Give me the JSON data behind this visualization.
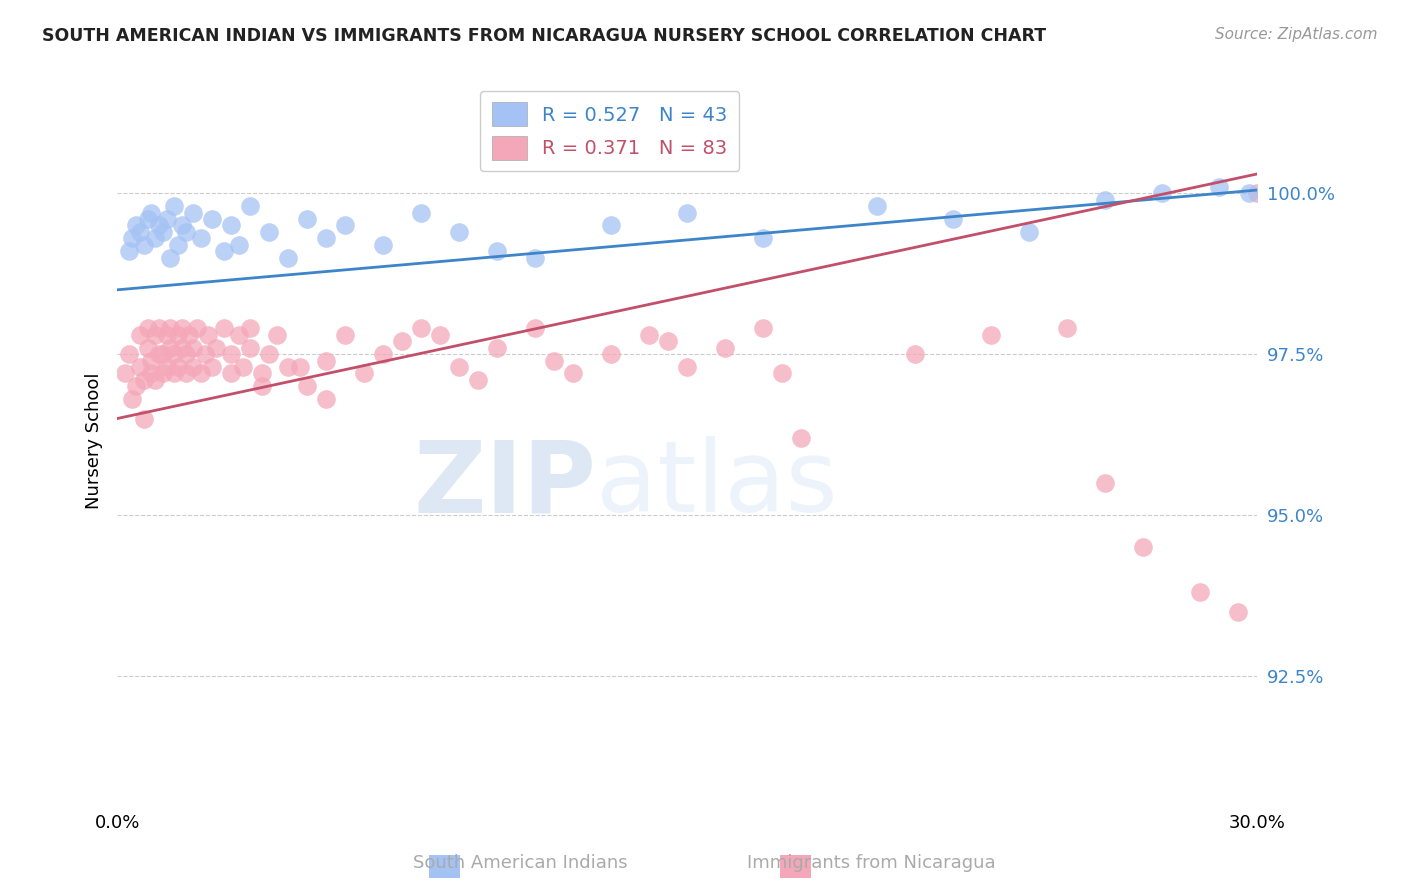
{
  "title": "SOUTH AMERICAN INDIAN VS IMMIGRANTS FROM NICARAGUA NURSERY SCHOOL CORRELATION CHART",
  "source": "Source: ZipAtlas.com",
  "ylabel": "Nursery School",
  "ytick_values": [
    92.5,
    95.0,
    97.5,
    100.0
  ],
  "xrange": [
    0.0,
    30.0
  ],
  "yrange": [
    90.5,
    101.8
  ],
  "blue_color": "#a4c2f4",
  "pink_color": "#f4a7b9",
  "blue_line_color": "#3d85c8",
  "pink_line_color": "#c2506a",
  "watermark_zip": "ZIP",
  "watermark_atlas": "atlas",
  "blue_line_x0": 0.0,
  "blue_line_y0": 98.5,
  "blue_line_x1": 30.0,
  "blue_line_y1": 100.05,
  "pink_line_x0": 0.0,
  "pink_line_y0": 96.5,
  "pink_line_x1": 30.0,
  "pink_line_y1": 100.3,
  "blue_scatter_x": [
    0.3,
    0.4,
    0.5,
    0.6,
    0.7,
    0.8,
    0.9,
    1.0,
    1.1,
    1.2,
    1.3,
    1.4,
    1.5,
    1.6,
    1.7,
    1.8,
    2.0,
    2.2,
    2.5,
    2.8,
    3.0,
    3.2,
    3.5,
    4.0,
    4.5,
    5.0,
    5.5,
    6.0,
    7.0,
    8.0,
    9.0,
    10.0,
    11.0,
    13.0,
    15.0,
    17.0,
    20.0,
    22.0,
    24.0,
    26.0,
    27.5,
    29.0,
    29.8
  ],
  "blue_scatter_y": [
    99.1,
    99.3,
    99.5,
    99.4,
    99.2,
    99.6,
    99.7,
    99.3,
    99.5,
    99.4,
    99.6,
    99.0,
    99.8,
    99.2,
    99.5,
    99.4,
    99.7,
    99.3,
    99.6,
    99.1,
    99.5,
    99.2,
    99.8,
    99.4,
    99.0,
    99.6,
    99.3,
    99.5,
    99.2,
    99.7,
    99.4,
    99.1,
    99.0,
    99.5,
    99.7,
    99.3,
    99.8,
    99.6,
    99.4,
    99.9,
    100.0,
    100.1,
    100.0
  ],
  "pink_scatter_x": [
    0.2,
    0.3,
    0.4,
    0.5,
    0.6,
    0.6,
    0.7,
    0.7,
    0.8,
    0.8,
    0.9,
    0.9,
    1.0,
    1.0,
    1.1,
    1.1,
    1.2,
    1.2,
    1.3,
    1.3,
    1.4,
    1.4,
    1.5,
    1.5,
    1.6,
    1.6,
    1.7,
    1.7,
    1.8,
    1.8,
    1.9,
    2.0,
    2.0,
    2.1,
    2.2,
    2.3,
    2.4,
    2.5,
    2.6,
    2.8,
    3.0,
    3.0,
    3.2,
    3.3,
    3.5,
    3.5,
    3.8,
    4.0,
    4.2,
    4.5,
    5.0,
    5.5,
    6.0,
    6.5,
    7.0,
    8.0,
    9.0,
    10.0,
    11.0,
    12.0,
    13.0,
    14.0,
    15.0,
    16.0,
    17.0,
    17.5,
    18.0,
    21.0,
    23.0,
    25.0,
    26.0,
    27.0,
    28.5,
    29.5,
    30.0,
    7.5,
    8.5,
    3.8,
    4.8,
    5.5,
    9.5,
    11.5,
    14.5
  ],
  "pink_scatter_y": [
    97.2,
    97.5,
    96.8,
    97.0,
    97.3,
    97.8,
    96.5,
    97.1,
    97.6,
    97.9,
    97.2,
    97.4,
    97.8,
    97.1,
    97.5,
    97.9,
    97.2,
    97.5,
    97.8,
    97.3,
    97.6,
    97.9,
    97.2,
    97.5,
    97.8,
    97.3,
    97.6,
    97.9,
    97.2,
    97.5,
    97.8,
    97.3,
    97.6,
    97.9,
    97.2,
    97.5,
    97.8,
    97.3,
    97.6,
    97.9,
    97.2,
    97.5,
    97.8,
    97.3,
    97.6,
    97.9,
    97.2,
    97.5,
    97.8,
    97.3,
    97.0,
    97.4,
    97.8,
    97.2,
    97.5,
    97.9,
    97.3,
    97.6,
    97.9,
    97.2,
    97.5,
    97.8,
    97.3,
    97.6,
    97.9,
    97.2,
    96.2,
    97.5,
    97.8,
    97.9,
    95.5,
    94.5,
    93.8,
    93.5,
    100.0,
    97.7,
    97.8,
    97.0,
    97.3,
    96.8,
    97.1,
    97.4,
    97.7
  ]
}
